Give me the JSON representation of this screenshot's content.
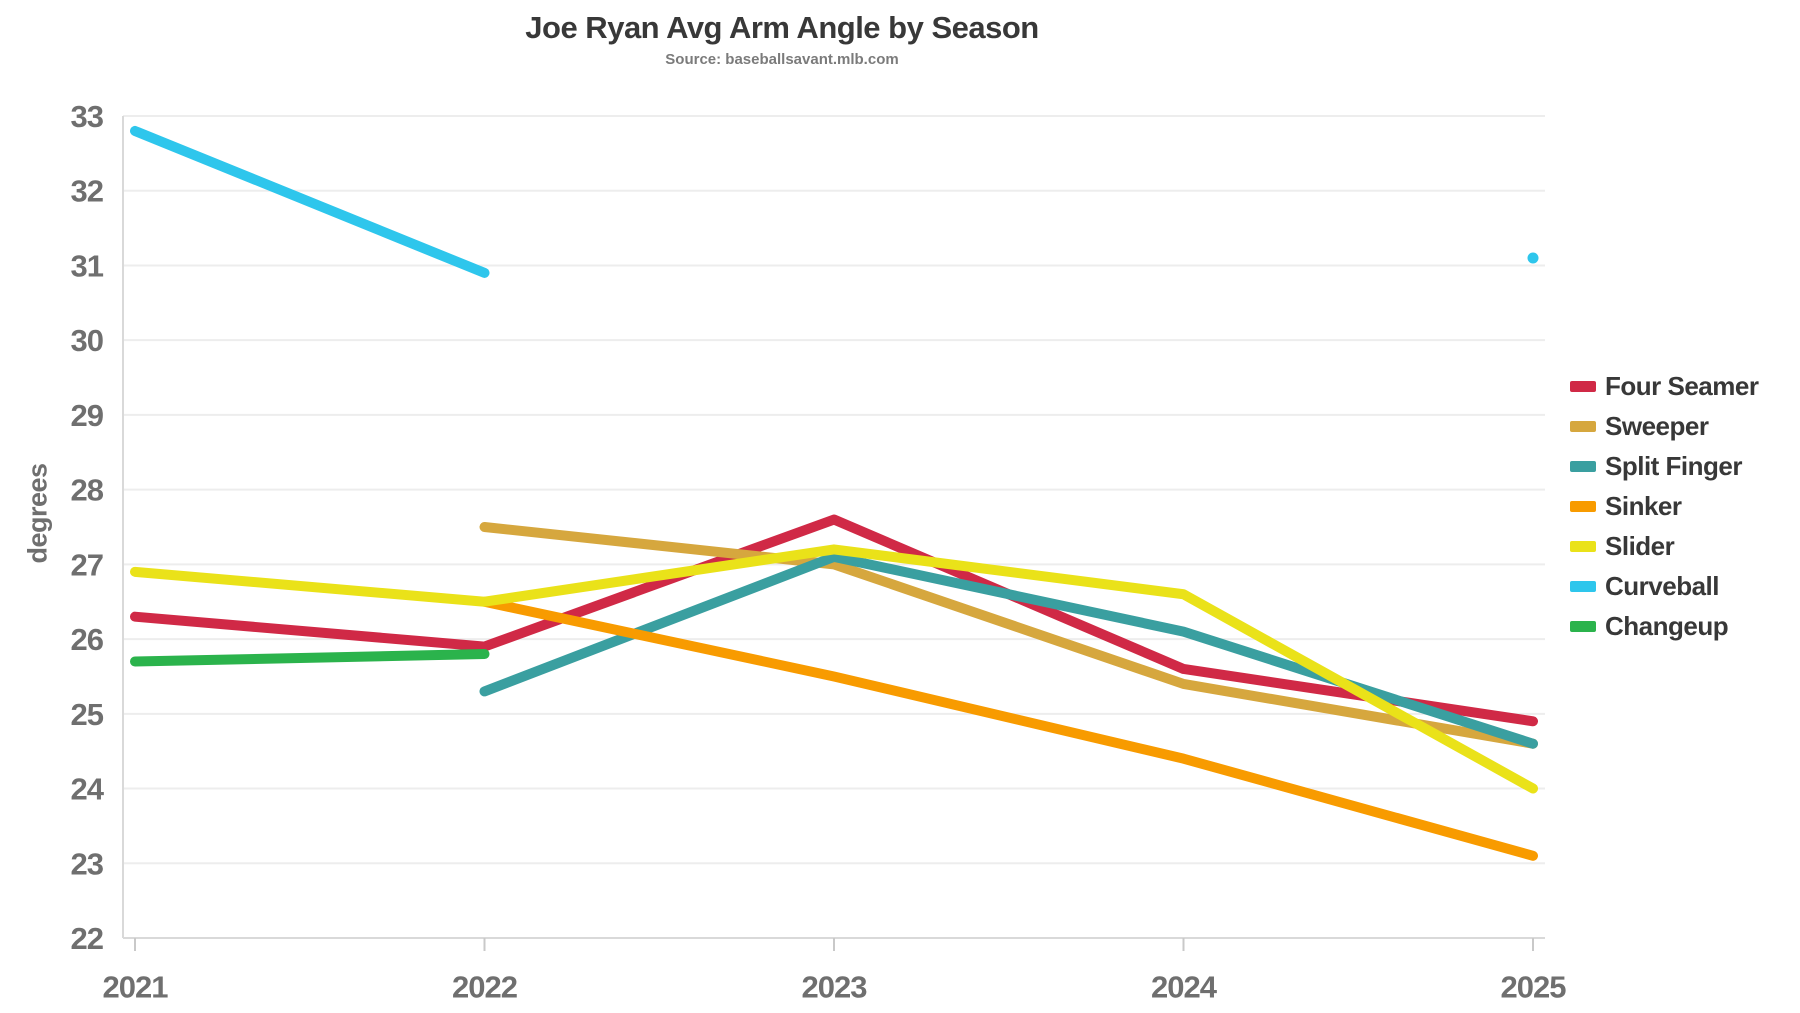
{
  "title": "Joe Ryan Avg Arm Angle by Season",
  "subtitle": "Source: baseballsavant.mlb.com",
  "chart_data": {
    "type": "line",
    "x": [
      2021,
      2022,
      2023,
      2024,
      2025
    ],
    "xlabel": "",
    "ylabel": "degrees",
    "ylim": [
      22,
      33
    ],
    "yticks": [
      22,
      23,
      24,
      25,
      26,
      27,
      28,
      29,
      30,
      31,
      32,
      33
    ],
    "grid": true,
    "legend_position": "right",
    "series": [
      {
        "name": "Four Seamer",
        "color": "#D02946",
        "values": [
          26.3,
          25.9,
          27.6,
          25.6,
          24.9
        ]
      },
      {
        "name": "Sweeper",
        "color": "#D6A73E",
        "values": [
          null,
          27.5,
          27.0,
          25.4,
          24.6
        ]
      },
      {
        "name": "Split Finger",
        "color": "#3A9FA0",
        "values": [
          null,
          25.3,
          27.1,
          26.1,
          24.6
        ]
      },
      {
        "name": "Sinker",
        "color": "#F89B00",
        "values": [
          null,
          26.5,
          25.5,
          24.4,
          23.1
        ]
      },
      {
        "name": "Slider",
        "color": "#EAE219",
        "values": [
          26.9,
          26.5,
          27.2,
          26.6,
          24.0
        ]
      },
      {
        "name": "Curveball",
        "color": "#2EC6EC",
        "values": [
          32.8,
          30.9,
          null,
          null,
          31.1
        ]
      },
      {
        "name": "Changeup",
        "color": "#2BB34C",
        "values": [
          25.7,
          25.8,
          null,
          null,
          null
        ]
      }
    ]
  },
  "style": {
    "grid_color": "#ededed",
    "axis_color": "#d9d9d9",
    "tick_color": "#c9c9c9"
  }
}
